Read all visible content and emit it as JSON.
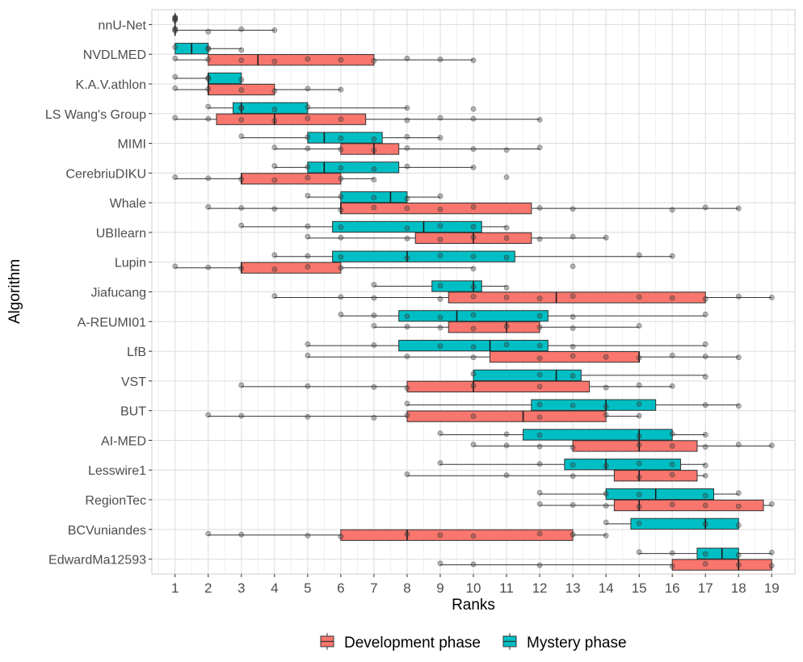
{
  "chart_data": {
    "type": "boxplot",
    "orientation": "horizontal",
    "xlabel": "Ranks",
    "ylabel": "Algorithm",
    "xlim": [
      0.3,
      19.7
    ],
    "x_ticks": [
      1,
      2,
      3,
      4,
      5,
      6,
      7,
      8,
      9,
      10,
      11,
      12,
      13,
      14,
      15,
      16,
      17,
      18,
      19
    ],
    "grid": true,
    "legend": {
      "position": "bottom",
      "entries": [
        {
          "name": "Development phase",
          "color": "#F8766D"
        },
        {
          "name": "Mystery phase",
          "color": "#00BFC4"
        }
      ]
    },
    "colors": {
      "dev": "#F8766D",
      "mys": "#00BFC4"
    },
    "categories": [
      "nnU-Net",
      "NVDLMED",
      "K.A.V.athlon",
      "LS Wang's Group",
      "MIMI",
      "CerebriuDIKU",
      "Whale",
      "UBIlearn",
      "Lupin",
      "Jiafucang",
      "A-REUMI01",
      "LfB",
      "VST",
      "BUT",
      "AI-MED",
      "Lesswire1",
      "RegionTec",
      "BCVuniandes",
      "EdwardMa12593"
    ],
    "series": [
      {
        "name": "Mystery phase",
        "boxes": [
          {
            "category": "nnU-Net",
            "min": 1,
            "q1": 1,
            "median": 1,
            "q3": 1,
            "max": 1,
            "points": [
              1,
              1,
              1,
              1,
              1
            ]
          },
          {
            "category": "NVDLMED",
            "min": 1,
            "q1": 1,
            "median": 1.5,
            "q3": 2,
            "max": 3,
            "points": [
              1,
              2,
              2,
              3
            ]
          },
          {
            "category": "K.A.V.athlon",
            "min": 1,
            "q1": 2,
            "median": 2,
            "q3": 3,
            "max": 3,
            "points": [
              1,
              2,
              2,
              3
            ]
          },
          {
            "category": "LS Wang's Group",
            "min": 2,
            "q1": 2.75,
            "median": 3,
            "q3": 5,
            "max": 8,
            "points": [
              2,
              3,
              3,
              4,
              5,
              8,
              10
            ]
          },
          {
            "category": "MIMI",
            "min": 3,
            "q1": 5,
            "median": 5.5,
            "q3": 7.25,
            "max": 9,
            "points": [
              3,
              5,
              6,
              7,
              8,
              9
            ]
          },
          {
            "category": "CerebriuDIKU",
            "min": 4,
            "q1": 5,
            "median": 5.5,
            "q3": 7.75,
            "max": 10,
            "points": [
              4,
              5,
              6,
              7,
              8,
              10
            ]
          },
          {
            "category": "Whale",
            "min": 5,
            "q1": 6,
            "median": 7.5,
            "q3": 8,
            "max": 9,
            "points": [
              5,
              6,
              7,
              8,
              9
            ]
          },
          {
            "category": "UBIlearn",
            "min": 3,
            "q1": 5.75,
            "median": 8.5,
            "q3": 10.25,
            "max": 11,
            "points": [
              3,
              5,
              6,
              8,
              9,
              10,
              11
            ]
          },
          {
            "category": "Lupin",
            "min": 4,
            "q1": 5.75,
            "median": 8,
            "q3": 11.25,
            "max": 16,
            "points": [
              4,
              5,
              6,
              8,
              9,
              10,
              11,
              15,
              16
            ]
          },
          {
            "category": "Jiafucang",
            "min": 7,
            "q1": 8.75,
            "median": 10,
            "q3": 10.25,
            "max": 11,
            "points": [
              7,
              9,
              10,
              11
            ]
          },
          {
            "category": "A-REUMI01",
            "min": 6,
            "q1": 7.75,
            "median": 9.5,
            "q3": 12.25,
            "max": 17,
            "points": [
              6,
              7,
              8,
              9,
              10,
              12,
              13,
              17
            ]
          },
          {
            "category": "LfB",
            "min": 5,
            "q1": 7.75,
            "median": 10.5,
            "q3": 12.25,
            "max": 17,
            "points": [
              5,
              7,
              9,
              10,
              11,
              12,
              13,
              17
            ]
          },
          {
            "category": "VST",
            "min": 10,
            "q1": 10,
            "median": 12.5,
            "q3": 13.25,
            "max": 17,
            "points": [
              10,
              12,
              13,
              17
            ]
          },
          {
            "category": "BUT",
            "min": 8,
            "q1": 11.75,
            "median": 14,
            "q3": 15.5,
            "max": 18,
            "points": [
              8,
              12,
              13,
              14,
              15,
              17,
              18
            ]
          },
          {
            "category": "AI-MED",
            "min": 9,
            "q1": 11.5,
            "median": 15,
            "q3": 16,
            "max": 17,
            "points": [
              9,
              11,
              12,
              15,
              16,
              17
            ]
          },
          {
            "category": "Lesswire1",
            "min": 9,
            "q1": 12.75,
            "median": 14,
            "q3": 16.25,
            "max": 17,
            "points": [
              9,
              12,
              13,
              14,
              15,
              16,
              17
            ]
          },
          {
            "category": "RegionTec",
            "min": 12,
            "q1": 14,
            "median": 15.5,
            "q3": 17.25,
            "max": 18,
            "points": [
              12,
              14,
              15,
              17,
              18
            ]
          },
          {
            "category": "BCVuniandes",
            "min": 14,
            "q1": 14.75,
            "median": 17,
            "q3": 18,
            "max": 18,
            "points": [
              14,
              15,
              17,
              18
            ]
          },
          {
            "category": "EdwardMa12593",
            "min": 15,
            "q1": 16.75,
            "median": 17.5,
            "q3": 18,
            "max": 19,
            "points": [
              15,
              16,
              17,
              18,
              19
            ]
          }
        ]
      },
      {
        "name": "Development phase",
        "boxes": [
          {
            "category": "nnU-Net",
            "min": 1,
            "q1": 1,
            "median": 1,
            "q3": 1,
            "max": 4,
            "points": [
              1,
              1,
              1,
              2,
              3,
              4
            ]
          },
          {
            "category": "NVDLMED",
            "min": 1,
            "q1": 2,
            "median": 3.5,
            "q3": 7,
            "max": 10,
            "points": [
              1,
              2,
              3,
              4,
              5,
              6,
              7,
              8,
              9,
              10
            ]
          },
          {
            "category": "K.A.V.athlon",
            "min": 1,
            "q1": 2,
            "median": 2,
            "q3": 4,
            "max": 6,
            "points": [
              1,
              2,
              3,
              4,
              5,
              6
            ]
          },
          {
            "category": "LS Wang's Group",
            "min": 1,
            "q1": 2.25,
            "median": 4,
            "q3": 6.75,
            "max": 12,
            "points": [
              1,
              2,
              3,
              4,
              5,
              6,
              8,
              9,
              10,
              12
            ]
          },
          {
            "category": "MIMI",
            "min": 4,
            "q1": 6,
            "median": 7,
            "q3": 7.75,
            "max": 12,
            "points": [
              4,
              5,
              6,
              7,
              8,
              10,
              11,
              12
            ]
          },
          {
            "category": "CerebriuDIKU",
            "min": 1,
            "q1": 3,
            "median": 3,
            "q3": 6,
            "max": 7,
            "points": [
              1,
              2,
              3,
              4,
              5,
              6,
              7,
              11
            ]
          },
          {
            "category": "Whale",
            "min": 2,
            "q1": 6,
            "median": 6,
            "q3": 11.75,
            "max": 18,
            "points": [
              2,
              3,
              4,
              6,
              7,
              8,
              9,
              10,
              12,
              13,
              16,
              17,
              18
            ]
          },
          {
            "category": "UBIlearn",
            "min": 5,
            "q1": 8.25,
            "median": 10,
            "q3": 11.75,
            "max": 14,
            "points": [
              5,
              6,
              8,
              9,
              10,
              11,
              12,
              13,
              14
            ]
          },
          {
            "category": "Lupin",
            "min": 1,
            "q1": 3,
            "median": 3,
            "q3": 6,
            "max": 10,
            "points": [
              1,
              2,
              3,
              4,
              5,
              6,
              10,
              13
            ]
          },
          {
            "category": "Jiafucang",
            "min": 4,
            "q1": 9.25,
            "median": 12.5,
            "q3": 17,
            "max": 19,
            "points": [
              4,
              6,
              7,
              9,
              10,
              11,
              12,
              13,
              15,
              16,
              17,
              18,
              19
            ]
          },
          {
            "category": "A-REUMI01",
            "min": 7,
            "q1": 9.25,
            "median": 11,
            "q3": 12,
            "max": 15,
            "points": [
              7,
              8,
              9,
              10,
              11,
              12,
              13,
              15
            ]
          },
          {
            "category": "LfB",
            "min": 5,
            "q1": 10.5,
            "median": 15,
            "q3": 15,
            "max": 18,
            "points": [
              5,
              8,
              10,
              12,
              13,
              14,
              15,
              16,
              17,
              18
            ]
          },
          {
            "category": "VST",
            "min": 3,
            "q1": 8,
            "median": 10,
            "q3": 13.5,
            "max": 16,
            "points": [
              3,
              5,
              7,
              8,
              10,
              12,
              14,
              15,
              16
            ]
          },
          {
            "category": "BUT",
            "min": 2,
            "q1": 8,
            "median": 11.5,
            "q3": 14,
            "max": 15,
            "points": [
              2,
              3,
              5,
              7,
              8,
              10,
              12,
              14,
              15
            ]
          },
          {
            "category": "AI-MED",
            "min": 10,
            "q1": 13,
            "median": 15,
            "q3": 16.75,
            "max": 19,
            "points": [
              10,
              11,
              12,
              13,
              15,
              16,
              17,
              18,
              19
            ]
          },
          {
            "category": "Lesswire1",
            "min": 8,
            "q1": 14.25,
            "median": 15,
            "q3": 16.75,
            "max": 17,
            "points": [
              8,
              11,
              13,
              15,
              16,
              17
            ]
          },
          {
            "category": "RegionTec",
            "min": 12,
            "q1": 14.25,
            "median": 15,
            "q3": 18.75,
            "max": 19,
            "points": [
              12,
              13,
              14,
              15,
              16,
              17,
              18,
              19
            ]
          },
          {
            "category": "BCVuniandes",
            "min": 2,
            "q1": 6,
            "median": 8,
            "q3": 13,
            "max": 14,
            "points": [
              2,
              3,
              5,
              6,
              8,
              9,
              10,
              12,
              13,
              14
            ]
          },
          {
            "category": "EdwardMa12593",
            "min": 9,
            "q1": 16,
            "median": 18,
            "q3": 19,
            "max": 19,
            "points": [
              9,
              10,
              12,
              16,
              17,
              18,
              19
            ]
          }
        ]
      }
    ]
  }
}
